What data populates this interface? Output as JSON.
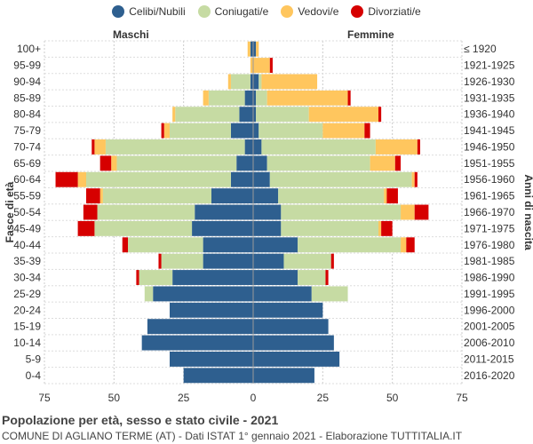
{
  "legend": [
    {
      "label": "Celibi/Nubili",
      "color": "#2e5f8f"
    },
    {
      "label": "Coniugati/e",
      "color": "#c6dba3"
    },
    {
      "label": "Vedovi/e",
      "color": "#ffc65e"
    },
    {
      "label": "Divorziati/e",
      "color": "#d60000"
    }
  ],
  "labels": {
    "left": "Maschi",
    "right": "Femmine",
    "y_left": "Fasce di età",
    "y_right": "Anni di nascita"
  },
  "footer": {
    "title": "Popolazione per età, sesso e stato civile - 2021",
    "subtitle": "COMUNE DI AGLIANO TERME (AT) - Dati ISTAT 1° gennaio 2021 - Elaborazione TUTTITALIA.IT"
  },
  "chart_data": {
    "type": "bar",
    "orientation": "horizontal-pyramid",
    "title": "Popolazione per età, sesso e stato civile - 2021",
    "xlim": [
      -75,
      75
    ],
    "x_ticks": [
      -75,
      -50,
      -25,
      0,
      25,
      50,
      75
    ],
    "x_tick_labels": [
      "75",
      "50",
      "25",
      "0",
      "25",
      "50",
      "75"
    ],
    "categories": [
      "100+",
      "95-99",
      "90-94",
      "85-89",
      "80-84",
      "75-79",
      "70-74",
      "65-69",
      "60-64",
      "55-59",
      "50-54",
      "45-49",
      "40-44",
      "35-39",
      "30-34",
      "25-29",
      "20-24",
      "15-19",
      "10-14",
      "5-9",
      "0-4"
    ],
    "birth_years": [
      "≤ 1920",
      "1921-1925",
      "1926-1930",
      "1931-1935",
      "1936-1940",
      "1941-1945",
      "1946-1950",
      "1951-1955",
      "1956-1960",
      "1961-1965",
      "1966-1970",
      "1971-1975",
      "1976-1980",
      "1981-1985",
      "1986-1990",
      "1991-1995",
      "1996-2000",
      "2001-2005",
      "2006-2010",
      "2011-2015",
      "2016-2020"
    ],
    "series_order": [
      "Celibi/Nubili",
      "Coniugati/e",
      "Vedovi/e",
      "Divorziati/e"
    ],
    "males": {
      "Celibi/Nubili": [
        1,
        0,
        1,
        3,
        5,
        8,
        3,
        6,
        8,
        15,
        21,
        22,
        18,
        18,
        29,
        36,
        30,
        38,
        40,
        30,
        25
      ],
      "Coniugati/e": [
        0,
        0,
        7,
        13,
        23,
        22,
        50,
        43,
        52,
        39,
        35,
        35,
        27,
        15,
        12,
        3,
        0,
        0,
        0,
        0,
        0
      ],
      "Vedovi/e": [
        1,
        1,
        1,
        2,
        1,
        2,
        4,
        2,
        3,
        1,
        0,
        0,
        0,
        0,
        0,
        0,
        0,
        0,
        0,
        0,
        0
      ],
      "Divorziati/e": [
        0,
        0,
        0,
        0,
        0,
        1,
        1,
        4,
        8,
        5,
        5,
        6,
        2,
        1,
        1,
        0,
        0,
        0,
        0,
        0,
        0
      ]
    },
    "females": {
      "Celibi/Nubili": [
        1,
        0,
        2,
        1,
        1,
        2,
        3,
        5,
        6,
        9,
        10,
        10,
        16,
        11,
        16,
        21,
        25,
        27,
        29,
        31,
        22
      ],
      "Coniugati/e": [
        0,
        0,
        1,
        4,
        19,
        23,
        41,
        37,
        51,
        38,
        43,
        35,
        37,
        17,
        10,
        13,
        0,
        0,
        0,
        0,
        0
      ],
      "Vedovi/e": [
        1,
        6,
        20,
        29,
        25,
        15,
        15,
        9,
        1,
        1,
        5,
        1,
        2,
        0,
        0,
        0,
        0,
        0,
        0,
        0,
        0
      ],
      "Divorziati/e": [
        0,
        1,
        0,
        1,
        1,
        2,
        1,
        2,
        1,
        4,
        5,
        4,
        3,
        1,
        1,
        0,
        0,
        0,
        0,
        0,
        0
      ]
    }
  }
}
